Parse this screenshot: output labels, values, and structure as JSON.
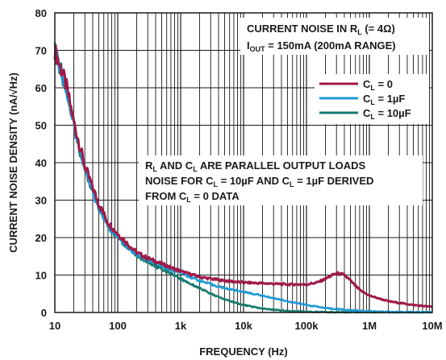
{
  "chart_data": {
    "type": "line",
    "title": "",
    "xlabel": "FREQUENCY (Hz)",
    "ylabel": "CURRENT NOISE DENSITY (nA/√Hz)",
    "x_scale": "log",
    "xlim": [
      10,
      10000000
    ],
    "ylim": [
      0,
      80
    ],
    "x_tick_labels": [
      "10",
      "100",
      "1k",
      "10k",
      "100k",
      "1M",
      "10M"
    ],
    "y_ticks": [
      0,
      10,
      20,
      30,
      40,
      50,
      60,
      70,
      80
    ],
    "grid": true,
    "annotations": {
      "box_line1": "CURRENT NOISE IN R(L) (= 4Ω)",
      "box_line2": "I(OUT) = 150mA (200mA RANGE)",
      "note_line1": "R(L) AND C(L) ARE PARALLEL OUTPUT LOADS",
      "note_line2": "NOISE FOR C(L) = 10µF AND C(L) = 1µF DERIVED",
      "note_line3": "FROM C(L) = 0 DATA"
    },
    "legend": {
      "placement": "right",
      "entries": [
        "C(L) = 0",
        "C(L) = 1µF",
        "C(L) = 10µF"
      ]
    },
    "series": [
      {
        "name": "C(L) = 0",
        "color": "#a01a4a",
        "x": [
          10,
          15,
          20,
          30,
          50,
          70,
          100,
          150,
          200,
          300,
          500,
          700,
          1000,
          2000,
          3000,
          5000,
          10000,
          20000,
          50000,
          100000,
          150000,
          200000,
          300000,
          400000,
          500000,
          700000,
          1000000,
          2000000,
          5000000,
          10000000
        ],
        "y": [
          70,
          61,
          51,
          39,
          29,
          24,
          21,
          18,
          16,
          14.5,
          13,
          12,
          11,
          9.5,
          9,
          8.5,
          8,
          7.8,
          7.5,
          7.5,
          8,
          9,
          10.5,
          10,
          8.5,
          6,
          4.5,
          3,
          2,
          1.5
        ]
      },
      {
        "name": "C(L) = 1µF",
        "color": "#1e9ad6",
        "x": [
          10,
          15,
          20,
          30,
          50,
          70,
          100,
          150,
          200,
          300,
          500,
          700,
          1000,
          2000,
          3000,
          5000,
          10000,
          20000,
          50000,
          100000,
          200000,
          500000,
          1000000,
          3000000,
          10000000
        ],
        "y": [
          70,
          60,
          50,
          38,
          28,
          23,
          20,
          17,
          15.5,
          14,
          12.5,
          11.5,
          10.5,
          8.5,
          7.5,
          6.5,
          5.5,
          4.5,
          3,
          2,
          1.2,
          0.6,
          0.3,
          0.1,
          0.05
        ]
      },
      {
        "name": "C(L) = 10µF",
        "color": "#157a6e",
        "x": [
          10,
          15,
          20,
          30,
          50,
          70,
          100,
          150,
          200,
          300,
          500,
          700,
          1000,
          2000,
          3000,
          5000,
          10000,
          20000,
          50000,
          100000,
          200000,
          500000,
          1000000,
          10000000
        ],
        "y": [
          70,
          60,
          50,
          38,
          28,
          23,
          20,
          17,
          15,
          13.5,
          11.5,
          10.5,
          9,
          6.5,
          5,
          3.5,
          2,
          1,
          0.4,
          0.2,
          0.1,
          0.05,
          0,
          0
        ]
      }
    ]
  }
}
